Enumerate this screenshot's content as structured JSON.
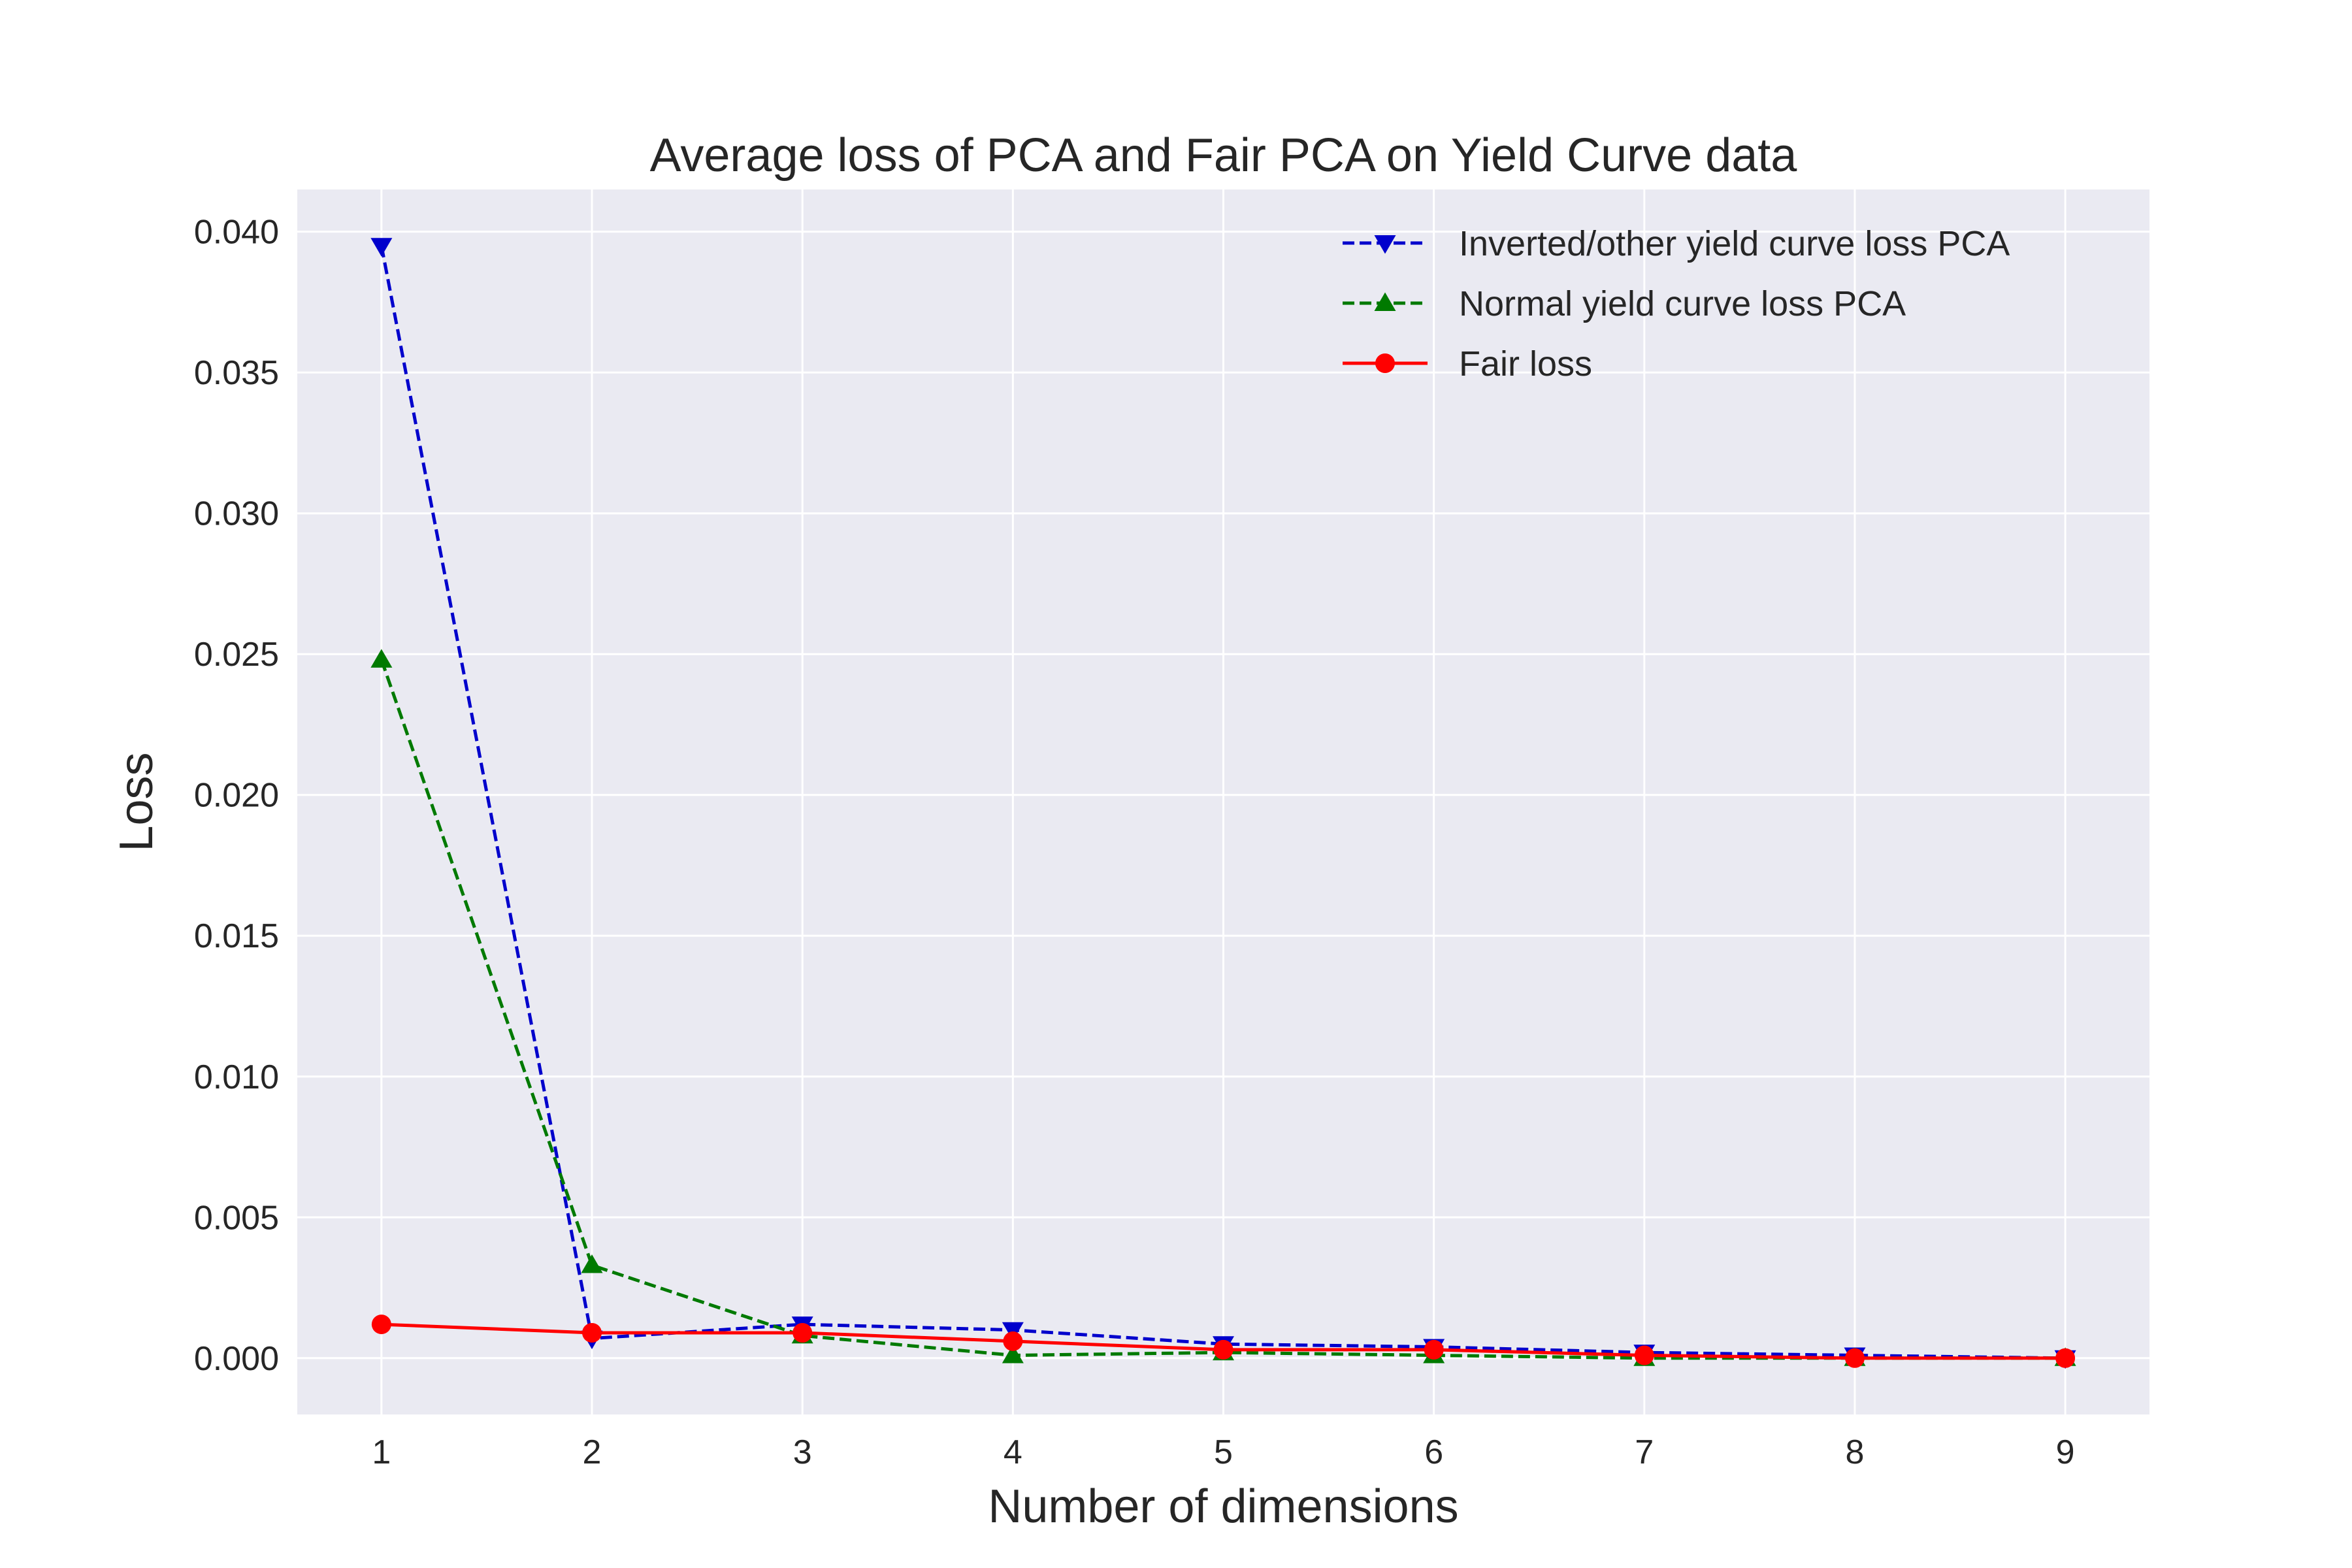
{
  "chart_data": {
    "type": "line",
    "title": "Average loss of PCA and Fair PCA on Yield Curve data",
    "xlabel": "Number of dimensions",
    "ylabel": "Loss",
    "x": [
      1,
      2,
      3,
      4,
      5,
      6,
      7,
      8,
      9
    ],
    "xlim": [
      0.6,
      9.4
    ],
    "ylim": [
      -0.002,
      0.0415
    ],
    "yticks": [
      0.0,
      0.005,
      0.01,
      0.015,
      0.02,
      0.025,
      0.03,
      0.035,
      0.04
    ],
    "ytick_labels": [
      "0.000",
      "0.005",
      "0.010",
      "0.015",
      "0.020",
      "0.025",
      "0.030",
      "0.035",
      "0.040"
    ],
    "xtick_labels": [
      "1",
      "2",
      "3",
      "4",
      "5",
      "6",
      "7",
      "8",
      "9"
    ],
    "grid": true,
    "legend_position": "top-right",
    "background": "#eaeaf2",
    "series": [
      {
        "name": "Inverted/other yield curve loss PCA",
        "color": "#0000cc",
        "linestyle": "dashed",
        "marker": "triangle-down",
        "values": [
          0.0395,
          0.0007,
          0.0012,
          0.001,
          0.0005,
          0.0004,
          0.0002,
          0.0001,
          0.0
        ]
      },
      {
        "name": "Normal yield curve loss PCA",
        "color": "#007a00",
        "linestyle": "dashed",
        "marker": "triangle-up",
        "values": [
          0.0248,
          0.0033,
          0.0008,
          0.0001,
          0.0002,
          0.0001,
          0.0,
          0.0,
          0.0
        ]
      },
      {
        "name": "Fair loss",
        "color": "#ff0000",
        "linestyle": "solid",
        "marker": "circle",
        "values": [
          0.0012,
          0.0009,
          0.0009,
          0.0006,
          0.0003,
          0.0003,
          0.0001,
          0.0,
          0.0
        ]
      }
    ]
  }
}
